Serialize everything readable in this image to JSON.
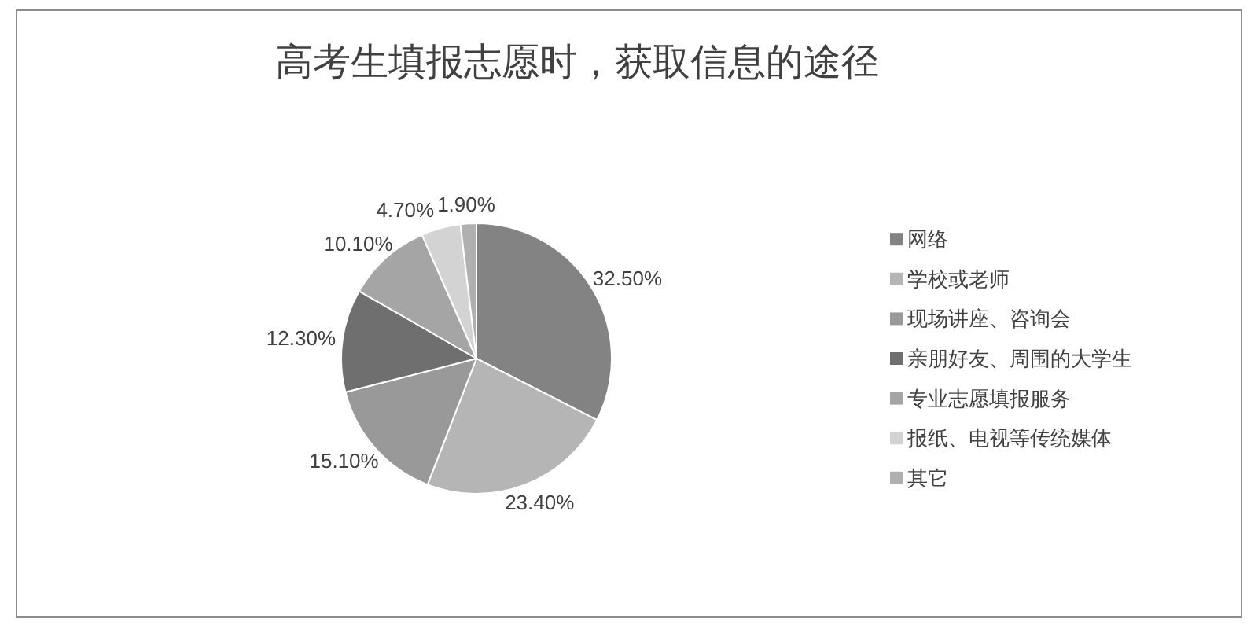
{
  "chart_data": {
    "type": "pie",
    "title": "高考生填报志愿时，获取信息的途径",
    "categories": [
      "网络",
      "学校或老师",
      "现场讲座、咨询会",
      "亲朋好友、周围的大学生",
      "专业志愿填报服务",
      "报纸、电视等传统媒体",
      "其它"
    ],
    "values": [
      32.5,
      23.4,
      15.1,
      12.3,
      10.1,
      4.7,
      1.9
    ],
    "colors": [
      "#838383",
      "#b5b5b5",
      "#999999",
      "#6f6f6f",
      "#a5a5a5",
      "#d3d3d3",
      "#b0b0b0"
    ],
    "value_labels": [
      "32.50%",
      "23.40%",
      "15.10%",
      "12.30%",
      "10.10%",
      "4.70%",
      "1.90%"
    ],
    "legend": "right"
  }
}
